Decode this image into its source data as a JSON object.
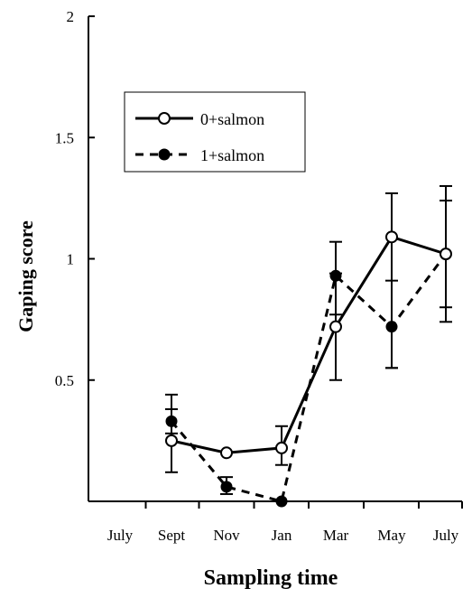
{
  "chart_data": {
    "type": "line",
    "title": "",
    "xlabel": "Sampling time",
    "ylabel": "Gaping score",
    "categories": [
      "July",
      "Sept",
      "Nov",
      "Jan",
      "Mar",
      "May",
      "July"
    ],
    "ylim": [
      0,
      2
    ],
    "yticks": [
      "0.5",
      "1",
      "1.5",
      "2"
    ],
    "grid": false,
    "legend_position": "top-left",
    "series": [
      {
        "name": "0+salmon",
        "style": "solid",
        "marker": "open-circle",
        "color": "#000000",
        "values": [
          null,
          0.25,
          0.2,
          0.22,
          0.72,
          1.09,
          1.02
        ],
        "err_low": [
          null,
          0.12,
          null,
          0.15,
          0.5,
          0.55,
          0.8
        ],
        "err_high": [
          null,
          0.44,
          null,
          0.31,
          1.07,
          1.27,
          1.3
        ]
      },
      {
        "name": "1+salmon",
        "style": "dashed",
        "marker": "filled-circle",
        "color": "#000000",
        "values": [
          null,
          0.33,
          0.06,
          0.0,
          0.93,
          0.72,
          1.02
        ],
        "err_low": [
          null,
          0.28,
          0.03,
          null,
          0.77,
          0.55,
          0.74
        ],
        "err_high": [
          null,
          0.38,
          0.1,
          null,
          0.94,
          0.91,
          1.24
        ]
      }
    ]
  }
}
